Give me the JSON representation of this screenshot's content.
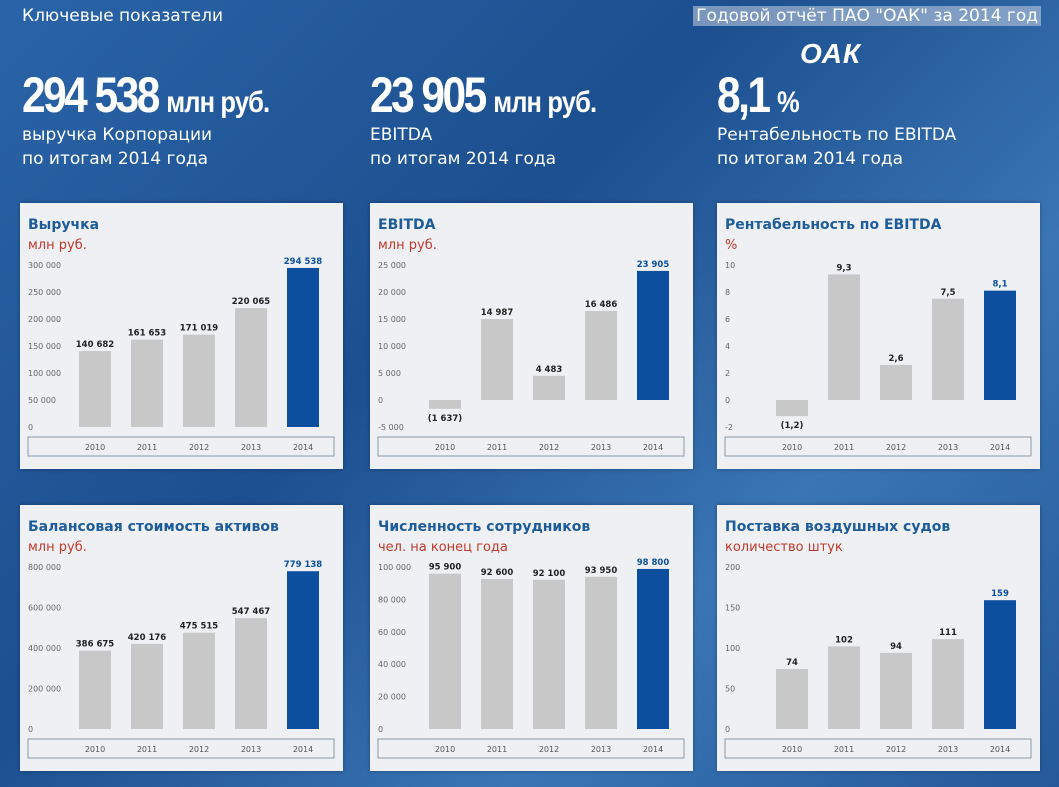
{
  "header": {
    "section": "Ключевые показатели",
    "report": "Годовой отчёт ПАО \"ОАК\" за 2014 год",
    "logo": "ОАК"
  },
  "kpis": [
    {
      "value": "294 538",
      "unit": "млн руб.",
      "line1": "выручка Корпорации",
      "line2": "по итогам 2014 года"
    },
    {
      "value": "23 905",
      "unit": "млн руб.",
      "line1": "EBITDA",
      "line2": "по итогам 2014 года"
    },
    {
      "value": "8,1",
      "unit": "%",
      "line1": "Рентабельность по EBITDA",
      "line2": "по итогам 2014 года"
    }
  ],
  "chart_data": [
    {
      "type": "bar",
      "title": "Выручка",
      "subtitle": "млн руб.",
      "categories": [
        "2010",
        "2011",
        "2012",
        "2013",
        "2014"
      ],
      "values": [
        140682,
        161653,
        171019,
        220065,
        294538
      ],
      "value_labels": [
        "140 682",
        "161 653",
        "171 019",
        "220 065",
        "294 538"
      ],
      "colors": [
        "#c8c8c8",
        "#c8c8c8",
        "#c8c8c8",
        "#c8c8c8",
        "#0b4f9e"
      ],
      "ylim": [
        0,
        300000
      ],
      "yticks": [
        0,
        {
          "value": 50000,
          "label": "50 000"
        },
        {
          "value": 100000,
          "label": "100 000"
        },
        {
          "value": 150000,
          "label": "150 000"
        },
        {
          "value": 200000,
          "label": "200 000"
        },
        {
          "value": 250000,
          "label": "250 000"
        },
        {
          "value": 300000,
          "label": "300 000"
        }
      ],
      "grid": false
    },
    {
      "type": "bar",
      "title": "EBITDA",
      "subtitle": "млн руб.",
      "categories": [
        "2010",
        "2011",
        "2012",
        "2013",
        "2014"
      ],
      "values": [
        -1637,
        14987,
        4483,
        16486,
        23905
      ],
      "value_labels": [
        "(1 637)",
        "14 987",
        "4 483",
        "16 486",
        "23 905"
      ],
      "colors": [
        "#c8c8c8",
        "#c8c8c8",
        "#c8c8c8",
        "#c8c8c8",
        "#0b4f9e"
      ],
      "ylim": [
        -5000,
        25000
      ],
      "yticks": [
        {
          "value": -5000,
          "label": "-5 000"
        },
        0,
        {
          "value": 5000,
          "label": "5 000"
        },
        {
          "value": 10000,
          "label": "10 000"
        },
        {
          "value": 15000,
          "label": "15 000"
        },
        {
          "value": 20000,
          "label": "20 000"
        },
        {
          "value": 25000,
          "label": "25 000"
        }
      ],
      "grid": false
    },
    {
      "type": "bar",
      "title": "Рентабельность по EBITDA",
      "subtitle": "%",
      "categories": [
        "2010",
        "2011",
        "2012",
        "2013",
        "2014"
      ],
      "values": [
        -1.2,
        9.3,
        2.6,
        7.5,
        8.1
      ],
      "value_labels": [
        "(1,2)",
        "9,3",
        "2,6",
        "7,5",
        "8,1"
      ],
      "colors": [
        "#c8c8c8",
        "#c8c8c8",
        "#c8c8c8",
        "#c8c8c8",
        "#0b4f9e"
      ],
      "ylim": [
        -2,
        10
      ],
      "yticks": [
        -2,
        0,
        2,
        4,
        6,
        8,
        10
      ],
      "grid": false
    },
    {
      "type": "bar",
      "title": "Балансовая стоимость активов",
      "subtitle": "млн руб.",
      "categories": [
        "2010",
        "2011",
        "2012",
        "2013",
        "2014"
      ],
      "values": [
        386675,
        420176,
        475515,
        547467,
        779138
      ],
      "value_labels": [
        "386 675",
        "420 176",
        "475 515",
        "547 467",
        "779 138"
      ],
      "colors": [
        "#c8c8c8",
        "#c8c8c8",
        "#c8c8c8",
        "#c8c8c8",
        "#0b4f9e"
      ],
      "ylim": [
        0,
        800000
      ],
      "yticks": [
        0,
        {
          "value": 200000,
          "label": "200 000"
        },
        {
          "value": 400000,
          "label": "400 000"
        },
        {
          "value": 600000,
          "label": "600 000"
        },
        {
          "value": 800000,
          "label": "800 000"
        }
      ],
      "grid": false
    },
    {
      "type": "bar",
      "title": "Численность сотрудников",
      "subtitle": "чел. на конец года",
      "categories": [
        "2010",
        "2011",
        "2012",
        "2013",
        "2014"
      ],
      "values": [
        95900,
        92600,
        92100,
        93950,
        98800
      ],
      "value_labels": [
        "95 900",
        "92 600",
        "92 100",
        "93 950",
        "98 800"
      ],
      "colors": [
        "#c8c8c8",
        "#c8c8c8",
        "#c8c8c8",
        "#c8c8c8",
        "#0b4f9e"
      ],
      "ylim": [
        0,
        100000
      ],
      "yticks": [
        0,
        {
          "value": 20000,
          "label": "20 000"
        },
        {
          "value": 40000,
          "label": "40 000"
        },
        {
          "value": 60000,
          "label": "60 000"
        },
        {
          "value": 80000,
          "label": "80 000"
        },
        {
          "value": 100000,
          "label": "100 000"
        }
      ],
      "grid": false
    },
    {
      "type": "bar",
      "title": "Поставка воздушных судов",
      "subtitle": "количество штук",
      "categories": [
        "2010",
        "2011",
        "2012",
        "2013",
        "2014"
      ],
      "values": [
        74,
        102,
        94,
        111,
        159
      ],
      "colors": [
        "#c8c8c8",
        "#c8c8c8",
        "#c8c8c8",
        "#c8c8c8",
        "#0b4f9e"
      ],
      "ylim": [
        0,
        200
      ],
      "yticks": [
        0,
        50,
        100,
        150,
        200
      ],
      "grid": false
    }
  ]
}
